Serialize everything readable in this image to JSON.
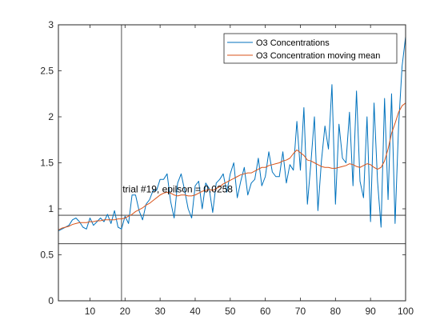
{
  "chart_data": {
    "type": "line",
    "title": "",
    "xlabel": "",
    "ylabel": "",
    "xlim": [
      1,
      100
    ],
    "ylim": [
      0,
      3
    ],
    "xticks": [
      10,
      20,
      30,
      40,
      50,
      60,
      70,
      80,
      90,
      100
    ],
    "yticks": [
      0,
      0.5,
      1,
      1.5,
      2,
      2.5,
      3
    ],
    "ytick_labels": [
      "0",
      "0.5",
      "1",
      "1.5",
      "2",
      "2.5",
      "3"
    ],
    "grid": false,
    "legend_position": "top-right",
    "x": [
      1,
      2,
      3,
      4,
      5,
      6,
      7,
      8,
      9,
      10,
      11,
      12,
      13,
      14,
      15,
      16,
      17,
      18,
      19,
      20,
      21,
      22,
      23,
      24,
      25,
      26,
      27,
      28,
      29,
      30,
      31,
      32,
      33,
      34,
      35,
      36,
      37,
      38,
      39,
      40,
      41,
      42,
      43,
      44,
      45,
      46,
      47,
      48,
      49,
      50,
      51,
      52,
      53,
      54,
      55,
      56,
      57,
      58,
      59,
      60,
      61,
      62,
      63,
      64,
      65,
      66,
      67,
      68,
      69,
      70,
      71,
      72,
      73,
      74,
      75,
      76,
      77,
      78,
      79,
      80,
      81,
      82,
      83,
      84,
      85,
      86,
      87,
      88,
      89,
      90,
      91,
      92,
      93,
      94,
      95,
      96,
      97,
      98,
      99,
      100
    ],
    "series": [
      {
        "name": "O3 Concentrations",
        "color": "#0072BD",
        "values": [
          0.76,
          0.78,
          0.8,
          0.82,
          0.88,
          0.9,
          0.86,
          0.8,
          0.78,
          0.9,
          0.82,
          0.86,
          0.9,
          0.86,
          0.94,
          0.84,
          0.98,
          0.8,
          0.78,
          0.92,
          0.84,
          1.15,
          1.15,
          0.98,
          0.88,
          1.05,
          1.1,
          1.2,
          1.2,
          1.32,
          1.32,
          1.38,
          1.08,
          0.9,
          1.28,
          1.38,
          1.2,
          1.0,
          0.9,
          1.25,
          1.3,
          1.0,
          1.28,
          1.22,
          0.96,
          1.28,
          1.32,
          1.38,
          1.18,
          1.38,
          1.5,
          1.12,
          1.3,
          1.45,
          1.15,
          1.28,
          1.32,
          1.55,
          1.25,
          1.35,
          1.62,
          1.4,
          1.35,
          1.35,
          1.62,
          1.28,
          1.48,
          1.42,
          1.95,
          1.42,
          2.1,
          1.05,
          1.5,
          2.0,
          0.98,
          1.52,
          1.9,
          1.65,
          2.35,
          1.05,
          1.92,
          1.55,
          1.5,
          2.05,
          1.25,
          2.28,
          1.3,
          1.12,
          2.0,
          0.86,
          2.15,
          1.3,
          0.8,
          2.2,
          1.1,
          2.25,
          0.84,
          1.9,
          2.55,
          2.87
        ]
      },
      {
        "name": "O3 Concentration moving mean",
        "color": "#D95319",
        "values": [
          0.77,
          0.79,
          0.8,
          0.81,
          0.83,
          0.84,
          0.85,
          0.85,
          0.85,
          0.86,
          0.86,
          0.87,
          0.87,
          0.88,
          0.88,
          0.88,
          0.88,
          0.89,
          0.89,
          0.9,
          0.92,
          0.94,
          0.97,
          0.99,
          1.01,
          1.04,
          1.06,
          1.09,
          1.12,
          1.15,
          1.17,
          1.18,
          1.17,
          1.15,
          1.14,
          1.15,
          1.15,
          1.14,
          1.14,
          1.15,
          1.17,
          1.19,
          1.2,
          1.21,
          1.2,
          1.22,
          1.24,
          1.27,
          1.29,
          1.31,
          1.33,
          1.35,
          1.37,
          1.38,
          1.39,
          1.39,
          1.41,
          1.43,
          1.45,
          1.45,
          1.47,
          1.48,
          1.49,
          1.5,
          1.52,
          1.53,
          1.55,
          1.6,
          1.64,
          1.61,
          1.58,
          1.53,
          1.52,
          1.5,
          1.48,
          1.46,
          1.45,
          1.45,
          1.44,
          1.44,
          1.45,
          1.46,
          1.47,
          1.49,
          1.48,
          1.46,
          1.45,
          1.47,
          1.49,
          1.48,
          1.45,
          1.43,
          1.45,
          1.52,
          1.65,
          1.82,
          1.93,
          2.05,
          2.12,
          2.15
        ]
      }
    ],
    "reference_lines": {
      "vertical_x": 19,
      "horizontal_y": [
        0.93,
        0.62
      ]
    },
    "annotations": [
      {
        "text": "trial #19, epilson = 0.0258",
        "x": 19.3,
        "y": 1.18
      }
    ]
  }
}
